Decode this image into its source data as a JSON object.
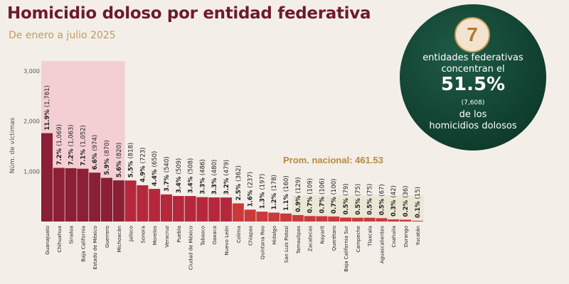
{
  "header": {
    "title": "Homicidio doloso por entidad federativa",
    "subtitle": "De enero a julio 2025"
  },
  "callout": {
    "number": "7",
    "line1": "entidades federativas",
    "line2": "concentran el",
    "percent": "51.5%",
    "count": "(7,608)",
    "line3": "de los",
    "line4": "homicidios dolosos"
  },
  "colors": {
    "top7": "#8a1f35",
    "mid": "#b5283c",
    "low": "#c93a3a",
    "highlight": "#f2c9cf",
    "average_band": "#ebe6d6",
    "average_text": "#b8893d"
  },
  "chart_data": {
    "type": "bar",
    "title": "Homicidio doloso por entidad federativa",
    "subtitle": "De enero a julio 2025",
    "ylabel": "Núm. de víctimas",
    "ylim": [
      0,
      3000
    ],
    "yticks": [
      {
        "value": 1000,
        "label": "1,000"
      },
      {
        "value": 2000,
        "label": "2,000"
      },
      {
        "value": 3000,
        "label": "3,000"
      }
    ],
    "categories": [
      "Guanajuato",
      "Chihuahua",
      "Sinaloa",
      "Baja California",
      "Estado de México",
      "Guerrero",
      "Michoacán",
      "Jalisco",
      "Sonora",
      "Morelos",
      "Veracruz",
      "Puebla",
      "Ciudad de México",
      "Tabasco",
      "Oaxaca",
      "Nuevo León",
      "Colima",
      "Chiapas",
      "Quintana Roo",
      "Hidalgo",
      "San Luis Potosí",
      "Tamaulipas",
      "Zacatecas",
      "Nayarit",
      "Querétaro",
      "Baja California Sur",
      "Campeche",
      "Tlaxcala",
      "Aguascalientes",
      "Coahuila",
      "Durango",
      "Yucatán"
    ],
    "values": [
      1761,
      1069,
      1063,
      1052,
      974,
      870,
      820,
      818,
      723,
      650,
      540,
      509,
      508,
      486,
      480,
      479,
      362,
      237,
      197,
      178,
      160,
      129,
      109,
      106,
      100,
      79,
      75,
      75,
      67,
      42,
      36,
      15
    ],
    "percents": [
      "11.9%",
      "7.2%",
      "7.2%",
      "7.1%",
      "6.6%",
      "5.9%",
      "5.6%",
      "5.5%",
      "4.9%",
      "4.4%",
      "3.7%",
      "3.4%",
      "3.4%",
      "3.3%",
      "3.3%",
      "3.2%",
      "2.5%",
      "1.6%",
      "1.3%",
      "1.2%",
      "1.1%",
      "0.9%",
      "0.7%",
      "0.7%",
      "0.7%",
      "0.5%",
      "0.5%",
      "0.5%",
      "0.5%",
      "0.3%",
      "0.2%",
      "0.1%"
    ],
    "counts": [
      "(1,761)",
      "(1,069)",
      "(1,063)",
      "(1,052)",
      "(974)",
      "(870)",
      "(820)",
      "(818)",
      "(723)",
      "(650)",
      "(540)",
      "(509)",
      "(508)",
      "(486)",
      "(480)",
      "(479)",
      "(362)",
      "(237)",
      "(197)",
      "(178)",
      "(160)",
      "(129)",
      "(109)",
      "(106)",
      "(100)",
      "(79)",
      "(75)",
      "(75)",
      "(67)",
      "(42)",
      "(36)",
      "(15)"
    ],
    "average": {
      "value": 461.53,
      "label": "Prom. nacional: 461.53"
    },
    "highlighted_count": 7
  }
}
